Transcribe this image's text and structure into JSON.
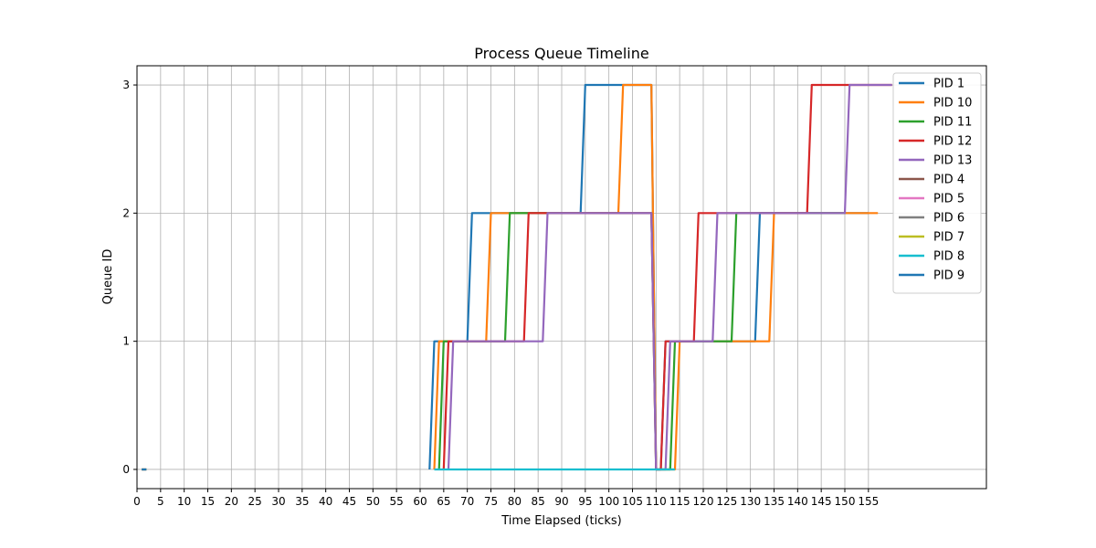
{
  "chart_data": {
    "type": "line",
    "title": "Process Queue Timeline",
    "xlabel": "Time Elapsed (ticks)",
    "ylabel": "Queue ID",
    "xlim": [
      0,
      180
    ],
    "ylim": [
      -0.15,
      3.15
    ],
    "x_ticks": [
      0,
      5,
      10,
      15,
      20,
      25,
      30,
      35,
      40,
      45,
      50,
      55,
      60,
      65,
      70,
      75,
      80,
      85,
      90,
      95,
      100,
      105,
      110,
      115,
      120,
      125,
      130,
      135,
      140,
      145,
      150,
      155
    ],
    "y_ticks": [
      0,
      1,
      2,
      3
    ],
    "grid": true,
    "legend_position": "top-right",
    "series": [
      {
        "name": "PID 1",
        "color": "#1f77b4",
        "points": [
          [
            62,
            0
          ],
          [
            63,
            1
          ],
          [
            70,
            1
          ],
          [
            71,
            2
          ],
          [
            94,
            2
          ],
          [
            95,
            3
          ],
          [
            109,
            3
          ],
          [
            110,
            0
          ],
          [
            111,
            0
          ],
          [
            112,
            1
          ],
          [
            131,
            1
          ],
          [
            132,
            2
          ],
          [
            155,
            2
          ]
        ]
      },
      {
        "name": "PID 10",
        "color": "#ff7f0e",
        "points": [
          [
            63,
            0
          ],
          [
            64,
            1
          ],
          [
            74,
            1
          ],
          [
            75,
            2
          ],
          [
            102,
            2
          ],
          [
            103,
            3
          ],
          [
            109,
            3
          ],
          [
            110,
            0
          ],
          [
            114,
            0
          ],
          [
            115,
            1
          ],
          [
            134,
            1
          ],
          [
            135,
            2
          ],
          [
            157,
            2
          ]
        ]
      },
      {
        "name": "PID 11",
        "color": "#2ca02c",
        "points": [
          [
            64,
            0
          ],
          [
            65,
            1
          ],
          [
            78,
            1
          ],
          [
            79,
            2
          ],
          [
            109,
            2
          ],
          [
            110,
            0
          ],
          [
            113,
            0
          ],
          [
            114,
            1
          ],
          [
            126,
            1
          ],
          [
            127,
            2
          ],
          [
            150,
            2
          ]
        ]
      },
      {
        "name": "PID 12",
        "color": "#d62728",
        "points": [
          [
            65,
            0
          ],
          [
            66,
            1
          ],
          [
            82,
            1
          ],
          [
            83,
            2
          ],
          [
            109,
            2
          ],
          [
            110,
            0
          ],
          [
            111,
            0
          ],
          [
            112,
            1
          ],
          [
            118,
            1
          ],
          [
            119,
            2
          ],
          [
            142,
            2
          ],
          [
            143,
            3
          ],
          [
            160,
            3
          ]
        ]
      },
      {
        "name": "PID 13",
        "color": "#9467bd",
        "points": [
          [
            66,
            0
          ],
          [
            67,
            1
          ],
          [
            86,
            1
          ],
          [
            87,
            2
          ],
          [
            109,
            2
          ],
          [
            110,
            0
          ],
          [
            112,
            0
          ],
          [
            113,
            1
          ],
          [
            122,
            1
          ],
          [
            123,
            2
          ],
          [
            150,
            2
          ],
          [
            151,
            3
          ],
          [
            160,
            3
          ]
        ]
      },
      {
        "name": "PID 4",
        "color": "#8c564b",
        "points": [
          [
            1,
            0
          ],
          [
            2,
            0
          ]
        ]
      },
      {
        "name": "PID 5",
        "color": "#e377c2",
        "points": [
          [
            1,
            0
          ],
          [
            2,
            0
          ]
        ]
      },
      {
        "name": "PID 6",
        "color": "#7f7f7f",
        "points": [
          [
            1,
            0
          ],
          [
            2,
            0
          ]
        ]
      },
      {
        "name": "PID 7",
        "color": "#bcbd22",
        "points": [
          [
            1,
            0
          ],
          [
            2,
            0
          ]
        ]
      },
      {
        "name": "PID 8",
        "color": "#17becf",
        "points": [
          [
            63,
            0
          ],
          [
            109,
            0
          ],
          [
            110,
            0
          ],
          [
            114,
            0
          ]
        ]
      },
      {
        "name": "PID 9",
        "color": "#1f77b4",
        "points": [
          [
            1,
            0
          ],
          [
            2,
            0
          ]
        ]
      }
    ]
  }
}
